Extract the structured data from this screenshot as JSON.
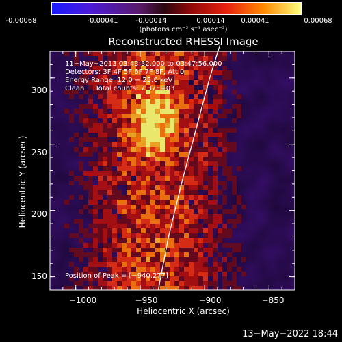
{
  "colorbar": {
    "ticks": [
      "-0.00068",
      "-0.00041",
      "-0.00014",
      "0.00014",
      "0.00041",
      "0.00068"
    ],
    "unit": "(photons cm⁻² s⁻¹ asec⁻²)"
  },
  "chart_data": {
    "type": "heatmap",
    "title": "Reconstructed RHESSI Image",
    "xlabel": "Heliocentric X (arcsec)",
    "ylabel": "Heliocentric Y (arcsec)",
    "xlim": [
      -1020,
      -830
    ],
    "ylim": [
      140,
      320
    ],
    "x_ticks": [
      "−1000",
      "−950",
      "−900",
      "−850"
    ],
    "x_tick_values": [
      -1000,
      -950,
      -900,
      -850
    ],
    "y_ticks": [
      "150",
      "200",
      "250",
      "300"
    ],
    "y_tick_values": [
      150,
      200,
      250,
      300
    ],
    "color_range": [
      -0.00068,
      0.00068
    ],
    "limb_curve": [
      [
        -936,
        140
      ],
      [
        -928,
        180
      ],
      [
        -918,
        220
      ],
      [
        -907,
        260
      ],
      [
        -896,
        300
      ],
      [
        -888,
        325
      ]
    ],
    "peak": [
      -940,
      277
    ],
    "annotations": {
      "time_range": "11−May−2013 03:43:32.000 to 03:47:56.000",
      "detectors": "Detectors: 3F 4F 5F 6F 7F 8F, Att 0",
      "energy": "Energy Range: 12.0 − 25.0 keV",
      "method": "Clean     Total counts: 7.37E+03",
      "peak_text": "Position of Peak = [−940,277]"
    }
  },
  "footer": {
    "timestamp": "13−May−2022 18:44"
  }
}
